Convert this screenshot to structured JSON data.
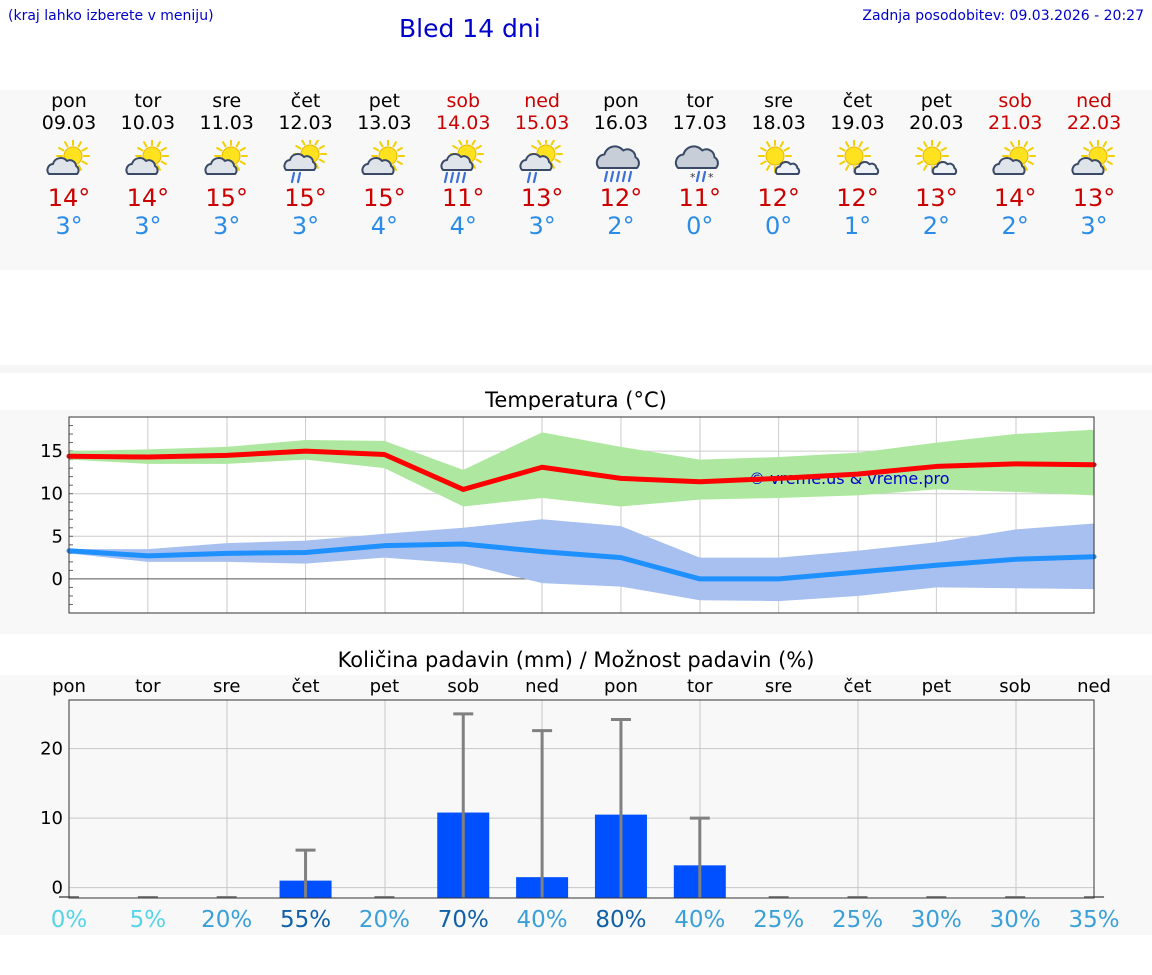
{
  "header": {
    "hint": "(kraj lahko izberete v meniju)",
    "title": "Bled 14 dni",
    "updated": "Zadnja posodobitev: 09.03.2026 - 20:27"
  },
  "days": [
    {
      "name": "pon",
      "date": "09.03",
      "weekend": false,
      "icon": "sun-cloud-icon",
      "tmax": "14°",
      "tmin": "3°"
    },
    {
      "name": "tor",
      "date": "10.03",
      "weekend": false,
      "icon": "sun-cloud-icon",
      "tmax": "14°",
      "tmin": "3°"
    },
    {
      "name": "sre",
      "date": "11.03",
      "weekend": false,
      "icon": "sun-cloud-icon",
      "tmax": "15°",
      "tmin": "3°"
    },
    {
      "name": "čet",
      "date": "12.03",
      "weekend": false,
      "icon": "sun-cloud-light-rain-icon",
      "tmax": "15°",
      "tmin": "3°"
    },
    {
      "name": "pet",
      "date": "13.03",
      "weekend": false,
      "icon": "sun-cloud-icon",
      "tmax": "15°",
      "tmin": "4°"
    },
    {
      "name": "sob",
      "date": "14.03",
      "weekend": true,
      "icon": "sun-cloud-rain-icon",
      "tmax": "11°",
      "tmin": "4°"
    },
    {
      "name": "ned",
      "date": "15.03",
      "weekend": true,
      "icon": "sun-cloud-light-rain-icon",
      "tmax": "13°",
      "tmin": "3°"
    },
    {
      "name": "pon",
      "date": "16.03",
      "weekend": false,
      "icon": "cloud-rain-icon",
      "tmax": "12°",
      "tmin": "2°"
    },
    {
      "name": "tor",
      "date": "17.03",
      "weekend": false,
      "icon": "cloud-sleet-icon",
      "tmax": "11°",
      "tmin": "0°"
    },
    {
      "name": "sre",
      "date": "18.03",
      "weekend": false,
      "icon": "sun-small-cloud-icon",
      "tmax": "12°",
      "tmin": "0°"
    },
    {
      "name": "čet",
      "date": "19.03",
      "weekend": false,
      "icon": "sun-small-cloud-icon",
      "tmax": "12°",
      "tmin": "1°"
    },
    {
      "name": "pet",
      "date": "20.03",
      "weekend": false,
      "icon": "sun-small-cloud-icon",
      "tmax": "13°",
      "tmin": "2°"
    },
    {
      "name": "sob",
      "date": "21.03",
      "weekend": true,
      "icon": "sun-cloud-icon",
      "tmax": "14°",
      "tmin": "2°"
    },
    {
      "name": "ned",
      "date": "22.03",
      "weekend": true,
      "icon": "sun-cloud-icon",
      "tmax": "13°",
      "tmin": "3°"
    }
  ],
  "chart_data": [
    {
      "type": "line",
      "title": "Temperatura (°C)",
      "x": [
        "09.03",
        "10.03",
        "11.03",
        "12.03",
        "13.03",
        "14.03",
        "15.03",
        "16.03",
        "17.03",
        "18.03",
        "19.03",
        "20.03",
        "21.03",
        "22.03"
      ],
      "ylim": [
        -4,
        19
      ],
      "yticks": [
        0,
        5,
        10,
        15
      ],
      "grid": true,
      "watermark": "© vreme.us & vreme.pro",
      "series": [
        {
          "name": "max",
          "color": "#ff0000",
          "values": [
            14.4,
            14.3,
            14.5,
            15.0,
            14.6,
            10.5,
            13.1,
            11.8,
            11.4,
            11.8,
            12.3,
            13.2,
            13.5,
            13.4
          ],
          "band_low": [
            14.0,
            13.5,
            13.5,
            14.0,
            13.0,
            8.5,
            9.5,
            8.5,
            9.3,
            9.5,
            9.8,
            10.5,
            10.2,
            9.8
          ],
          "band_high": [
            15.0,
            15.2,
            15.5,
            16.3,
            16.2,
            12.8,
            17.2,
            15.5,
            14.0,
            14.3,
            14.8,
            16.0,
            17.0,
            17.5
          ],
          "band_color": "#aee8a0"
        },
        {
          "name": "min",
          "color": "#1e90ff",
          "values": [
            3.3,
            2.7,
            3.0,
            3.1,
            3.9,
            4.1,
            3.2,
            2.5,
            0.0,
            0.0,
            0.8,
            1.6,
            2.3,
            2.6
          ],
          "band_low": [
            3.0,
            2.0,
            2.0,
            1.8,
            2.5,
            1.8,
            -0.5,
            -0.9,
            -2.5,
            -2.6,
            -2.0,
            -1.0,
            -1.1,
            -1.2
          ],
          "band_high": [
            3.5,
            3.5,
            4.2,
            4.5,
            5.3,
            6.0,
            7.0,
            6.2,
            2.5,
            2.5,
            3.3,
            4.3,
            5.8,
            6.5
          ],
          "band_color": "#a8c0f0"
        }
      ]
    },
    {
      "type": "bar",
      "title": "Količina padavin (mm) / Možnost padavin (%)",
      "categories": [
        "pon",
        "tor",
        "sre",
        "čet",
        "pet",
        "sob",
        "ned",
        "pon",
        "tor",
        "sre",
        "čet",
        "pet",
        "sob",
        "ned"
      ],
      "ylim": [
        -1.5,
        27
      ],
      "yticks": [
        0,
        10,
        20
      ],
      "grid": true,
      "values": [
        0,
        0,
        0,
        1.0,
        0,
        10.8,
        1.5,
        10.5,
        3.2,
        0,
        0,
        0,
        0,
        0
      ],
      "error_high": [
        0,
        0,
        0,
        5.4,
        0,
        25.0,
        22.6,
        24.2,
        10.0,
        0,
        0,
        0,
        0,
        0
      ],
      "bar_color": "#0050ff",
      "probability": [
        "0%",
        "5%",
        "20%",
        "55%",
        "20%",
        "70%",
        "40%",
        "80%",
        "40%",
        "25%",
        "25%",
        "30%",
        "30%",
        "35%"
      ],
      "probability_colors": [
        "#55d4e8",
        "#55d4e8",
        "#3ba0d8",
        "#1060a8",
        "#3ba0d8",
        "#1060a8",
        "#3ba0d8",
        "#1060a8",
        "#3ba0d8",
        "#3ba0d8",
        "#3ba0d8",
        "#3ba0d8",
        "#3ba0d8",
        "#3ba0d8"
      ]
    }
  ]
}
